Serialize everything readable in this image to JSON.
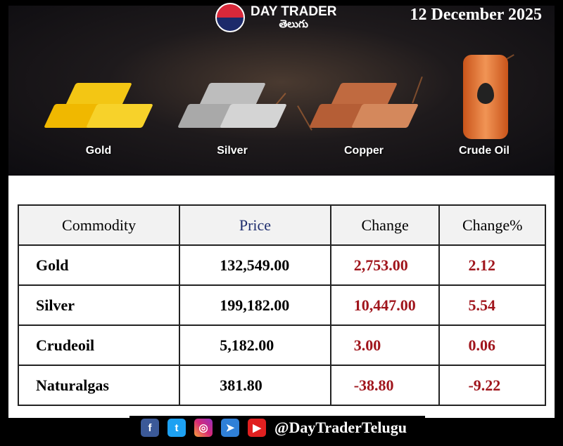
{
  "header": {
    "brand": "DAY TRADER",
    "brand_sub": "తెలుగు",
    "date": "12 December 2025"
  },
  "banner_items": [
    {
      "label": "Gold",
      "color": "#f3c614"
    },
    {
      "label": "Silver",
      "color": "#c8c8c8"
    },
    {
      "label": "Copper",
      "color": "#c8774c"
    },
    {
      "label": "Crude Oil",
      "color": "#e87a35"
    }
  ],
  "table": {
    "headers": [
      "Commodity",
      "Price",
      "Change",
      "Change%"
    ],
    "rows": [
      [
        "Gold",
        "132,549.00",
        "2,753.00",
        "2.12"
      ],
      [
        "Silver",
        "199,182.00",
        "10,447.00",
        "5.54"
      ],
      [
        "Crudeoil",
        "5,182.00",
        "3.00",
        "0.06"
      ],
      [
        "Naturalgas",
        "381.80",
        "-38.80",
        "-9.22"
      ]
    ]
  },
  "footer": {
    "handle": "@DayTraderTelugu",
    "icons": [
      "facebook-icon",
      "twitter-icon",
      "instagram-icon",
      "telegram-icon",
      "youtube-icon"
    ]
  }
}
